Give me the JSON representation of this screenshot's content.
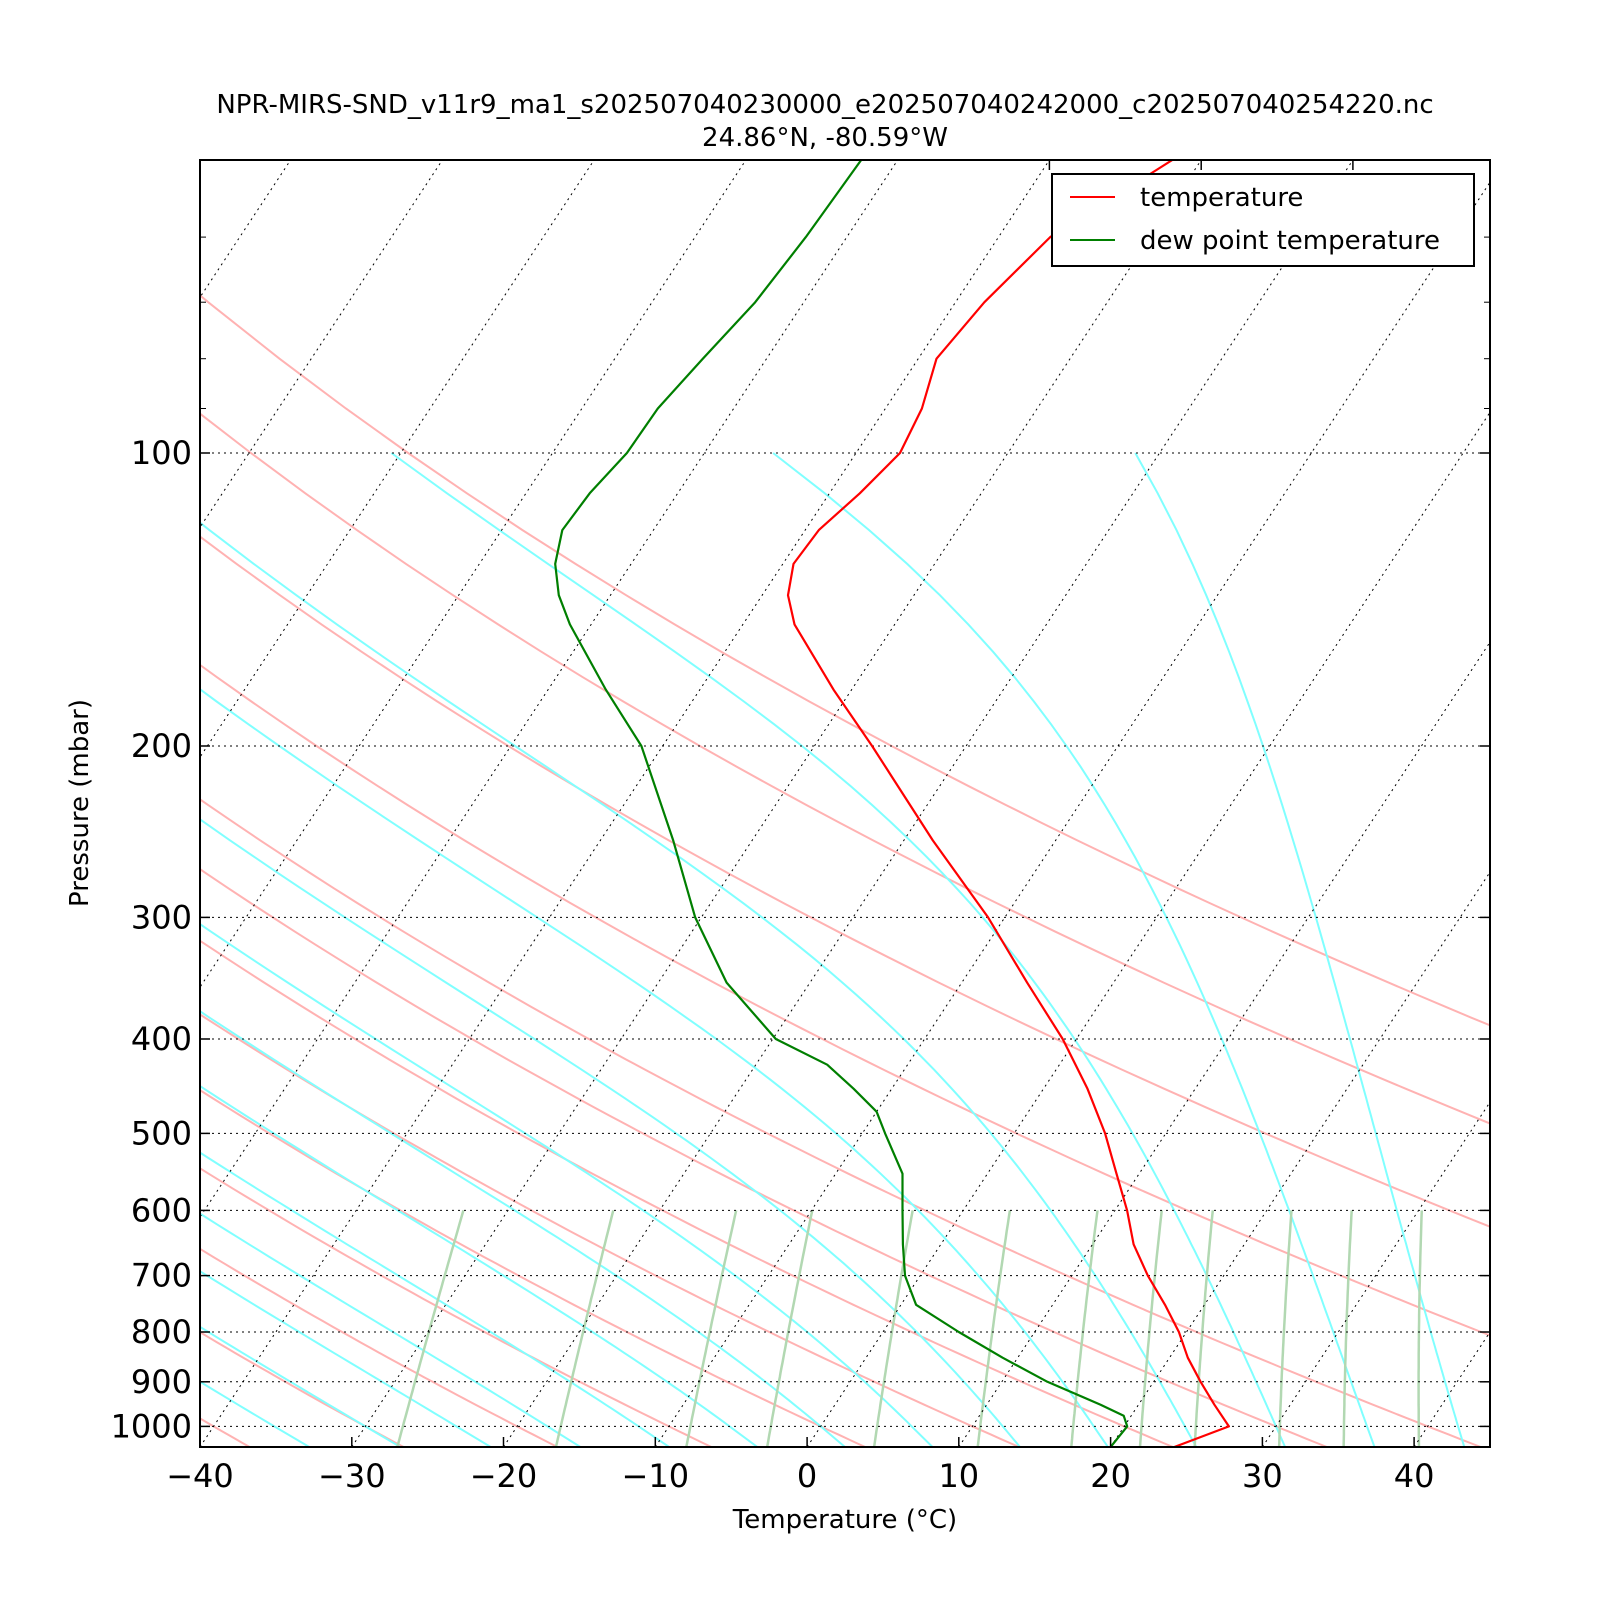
{
  "title_line1": "NPR-MIRS-SND_v11r9_ma1_s202507040230000_e202507040242000_c202507040254220.nc",
  "title_line2": "24.86°N, -80.59°W",
  "colors": {
    "temperature": "#ff0000",
    "dewpoint": "#007f00",
    "dry_adiabat": "#ffb2b2",
    "moist_adiabat": "#80ffff",
    "mixing_ratio": "#b2d8b2",
    "isotherm": "#000000"
  },
  "chart_data": {
    "type": "line",
    "subtype": "skew-T log-P",
    "xlabel": "Temperature (°C)",
    "ylabel": "Pressure (mbar)",
    "xlim": [
      -40,
      45
    ],
    "ylim": [
      1050,
      50
    ],
    "yscale": "log",
    "xticks": [
      -40,
      -30,
      -20,
      -10,
      0,
      10,
      20,
      30,
      40
    ],
    "xtick_labels": [
      "−40",
      "−30",
      "−20",
      "−10",
      "0",
      "10",
      "20",
      "30",
      "40"
    ],
    "yticks": [
      100,
      200,
      300,
      400,
      500,
      600,
      700,
      800,
      900,
      1000
    ],
    "ytick_labels": [
      "100",
      "200",
      "300",
      "400",
      "500",
      "600",
      "700",
      "800",
      "900",
      "1000"
    ],
    "grid": true,
    "legend": {
      "placement": "top-right",
      "entries": [
        "temperature",
        "dew point temperature"
      ]
    },
    "series": [
      {
        "name": "temperature",
        "pressure": [
          1050,
          1000,
          950,
          900,
          850,
          800,
          750,
          700,
          650,
          600,
          550,
          500,
          450,
          400,
          350,
          300,
          250,
          200,
          175,
          150,
          140,
          130,
          120,
          110,
          100,
          90,
          80,
          70,
          60,
          50
        ],
        "temperature": [
          24.2,
          26.9,
          25.0,
          23.1,
          21.2,
          19.5,
          17.4,
          15.0,
          12.7,
          10.8,
          8.5,
          6.0,
          2.9,
          -0.9,
          -5.7,
          -11.1,
          -18.1,
          -26.2,
          -31.2,
          -36.6,
          -38.3,
          -39.3,
          -39.1,
          -38.0,
          -37.1,
          -37.6,
          -38.8,
          -38.1,
          -36.6,
          -31.9
        ]
      },
      {
        "name": "dew point temperature",
        "pressure": [
          1050,
          1000,
          975,
          950,
          900,
          850,
          800,
          750,
          700,
          650,
          600,
          550,
          500,
          475,
          450,
          425,
          400,
          350,
          300,
          250,
          200,
          175,
          150,
          140,
          130,
          120,
          110,
          100,
          90,
          80,
          70,
          60,
          50
        ],
        "temperature": [
          20.0,
          20.2,
          19.5,
          17.5,
          13.0,
          9.0,
          5.0,
          1.0,
          -1.0,
          -2.5,
          -4.0,
          -5.6,
          -8.5,
          -10.0,
          -12.5,
          -15.3,
          -19.8,
          -25.5,
          -30.4,
          -35.2,
          -41.4,
          -46.2,
          -51.4,
          -53.4,
          -55.0,
          -56.0,
          -55.8,
          -55.1,
          -55.0,
          -54.2,
          -53.2,
          -52.7,
          -52.4
        ]
      }
    ]
  }
}
